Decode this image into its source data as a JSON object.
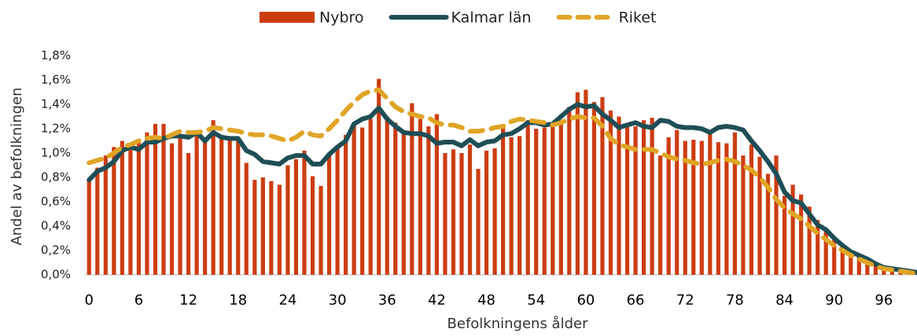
{
  "chart_data": {
    "type": "combo",
    "xlabel": "Befolkningens ålder",
    "ylabel": "Andel av befolkningen",
    "categories": [
      "0",
      null,
      null,
      null,
      null,
      null,
      "6",
      null,
      null,
      null,
      null,
      null,
      "12",
      null,
      null,
      null,
      null,
      null,
      "18",
      null,
      null,
      null,
      null,
      null,
      "24",
      null,
      null,
      null,
      null,
      null,
      "30",
      null,
      null,
      null,
      null,
      null,
      "36",
      null,
      null,
      null,
      null,
      null,
      "42",
      null,
      null,
      null,
      null,
      null,
      "48",
      null,
      null,
      null,
      null,
      null,
      "54",
      null,
      null,
      null,
      null,
      null,
      "60",
      null,
      null,
      null,
      null,
      null,
      "66",
      null,
      null,
      null,
      null,
      null,
      "72",
      null,
      null,
      null,
      null,
      null,
      "78",
      null,
      null,
      null,
      null,
      null,
      "84",
      null,
      null,
      null,
      null,
      null,
      "90",
      null,
      null,
      null,
      null,
      null,
      "96",
      null,
      null,
      null,
      null
    ],
    "ylim": [
      0,
      1.8
    ],
    "yticks": [
      {
        "value": 0,
        "label": "0,0%"
      },
      {
        "value": 0.2,
        "label": "0,2%"
      },
      {
        "value": 0.4,
        "label": "0,4%"
      },
      {
        "value": 0.6,
        "label": "0,6%"
      },
      {
        "value": 0.8,
        "label": "0,8%"
      },
      {
        "value": 1.0,
        "label": "1,0%"
      },
      {
        "value": 1.2,
        "label": "1,2%"
      },
      {
        "value": 1.4,
        "label": "1,4%"
      },
      {
        "value": 1.6,
        "label": "1,6%"
      },
      {
        "value": 1.8,
        "label": "1,8%"
      }
    ],
    "legend": "top",
    "series": [
      {
        "name": "Nybro",
        "type": "bar",
        "color": "#cc3d12",
        "values": [
          0.78,
          0.88,
          0.98,
          1.05,
          1.1,
          1.05,
          1.1,
          1.17,
          1.24,
          1.24,
          1.08,
          1.14,
          1.0,
          1.18,
          1.1,
          1.27,
          1.15,
          1.12,
          1.1,
          0.92,
          0.78,
          0.8,
          0.77,
          0.74,
          0.9,
          0.95,
          1.02,
          0.81,
          0.73,
          0.98,
          1.05,
          1.15,
          1.25,
          1.21,
          1.28,
          1.61,
          1.3,
          1.25,
          1.18,
          1.41,
          1.28,
          1.22,
          1.32,
          1.0,
          1.03,
          1.0,
          1.07,
          0.87,
          1.02,
          1.04,
          1.22,
          1.13,
          1.14,
          1.27,
          1.2,
          1.21,
          1.22,
          1.25,
          1.38,
          1.5,
          1.52,
          1.42,
          1.46,
          1.35,
          1.3,
          1.22,
          1.22,
          1.27,
          1.29,
          0.98,
          1.13,
          1.19,
          1.1,
          1.11,
          1.1,
          1.17,
          1.09,
          1.08,
          1.17,
          0.98,
          1.07,
          0.97,
          0.83,
          0.98,
          0.65,
          0.74,
          0.66,
          0.56,
          0.45,
          0.38,
          0.3,
          0.23,
          0.2,
          0.15,
          0.1,
          0.08,
          0.06,
          0.04,
          0.03,
          0.02,
          0.01
        ]
      },
      {
        "name": "Kalmar län",
        "type": "line",
        "color": "#1f4e56",
        "values": [
          0.78,
          0.85,
          0.88,
          0.93,
          1.02,
          1.05,
          1.03,
          1.09,
          1.09,
          1.12,
          1.14,
          1.14,
          1.13,
          1.17,
          1.1,
          1.17,
          1.13,
          1.12,
          1.12,
          1.02,
          0.99,
          0.93,
          0.92,
          0.91,
          0.96,
          0.98,
          0.98,
          0.91,
          0.91,
          0.99,
          1.05,
          1.1,
          1.24,
          1.28,
          1.3,
          1.37,
          1.28,
          1.22,
          1.17,
          1.16,
          1.16,
          1.14,
          1.08,
          1.09,
          1.09,
          1.06,
          1.11,
          1.06,
          1.09,
          1.1,
          1.15,
          1.16,
          1.2,
          1.25,
          1.25,
          1.23,
          1.24,
          1.3,
          1.36,
          1.4,
          1.38,
          1.39,
          1.32,
          1.27,
          1.21,
          1.23,
          1.25,
          1.22,
          1.21,
          1.27,
          1.26,
          1.22,
          1.21,
          1.21,
          1.2,
          1.17,
          1.21,
          1.22,
          1.21,
          1.19,
          1.1,
          1.02,
          0.93,
          0.83,
          0.68,
          0.61,
          0.59,
          0.5,
          0.41,
          0.37,
          0.3,
          0.24,
          0.19,
          0.16,
          0.13,
          0.09,
          0.06,
          0.05,
          0.04,
          0.03,
          0.02
        ]
      },
      {
        "name": "Riket",
        "type": "line",
        "line_style": "dashed",
        "color": "#e0a526",
        "values": [
          0.92,
          0.94,
          0.96,
          1.0,
          1.05,
          1.07,
          1.1,
          1.12,
          1.13,
          1.12,
          1.15,
          1.18,
          1.17,
          1.17,
          1.18,
          1.21,
          1.2,
          1.19,
          1.18,
          1.16,
          1.15,
          1.15,
          1.14,
          1.12,
          1.1,
          1.13,
          1.18,
          1.15,
          1.14,
          1.2,
          1.27,
          1.35,
          1.42,
          1.48,
          1.51,
          1.52,
          1.45,
          1.38,
          1.34,
          1.32,
          1.3,
          1.29,
          1.25,
          1.23,
          1.23,
          1.21,
          1.18,
          1.18,
          1.19,
          1.21,
          1.22,
          1.26,
          1.28,
          1.27,
          1.26,
          1.25,
          1.23,
          1.25,
          1.28,
          1.3,
          1.29,
          1.29,
          1.22,
          1.12,
          1.07,
          1.05,
          1.03,
          1.03,
          1.03,
          1.0,
          0.97,
          0.95,
          0.94,
          0.92,
          0.91,
          0.92,
          0.94,
          0.95,
          0.93,
          0.9,
          0.86,
          0.8,
          0.72,
          0.62,
          0.55,
          0.5,
          0.46,
          0.4,
          0.34,
          0.29,
          0.24,
          0.2,
          0.16,
          0.13,
          0.1,
          0.07,
          0.05,
          0.04,
          0.03,
          0.02,
          0.01
        ]
      }
    ]
  }
}
